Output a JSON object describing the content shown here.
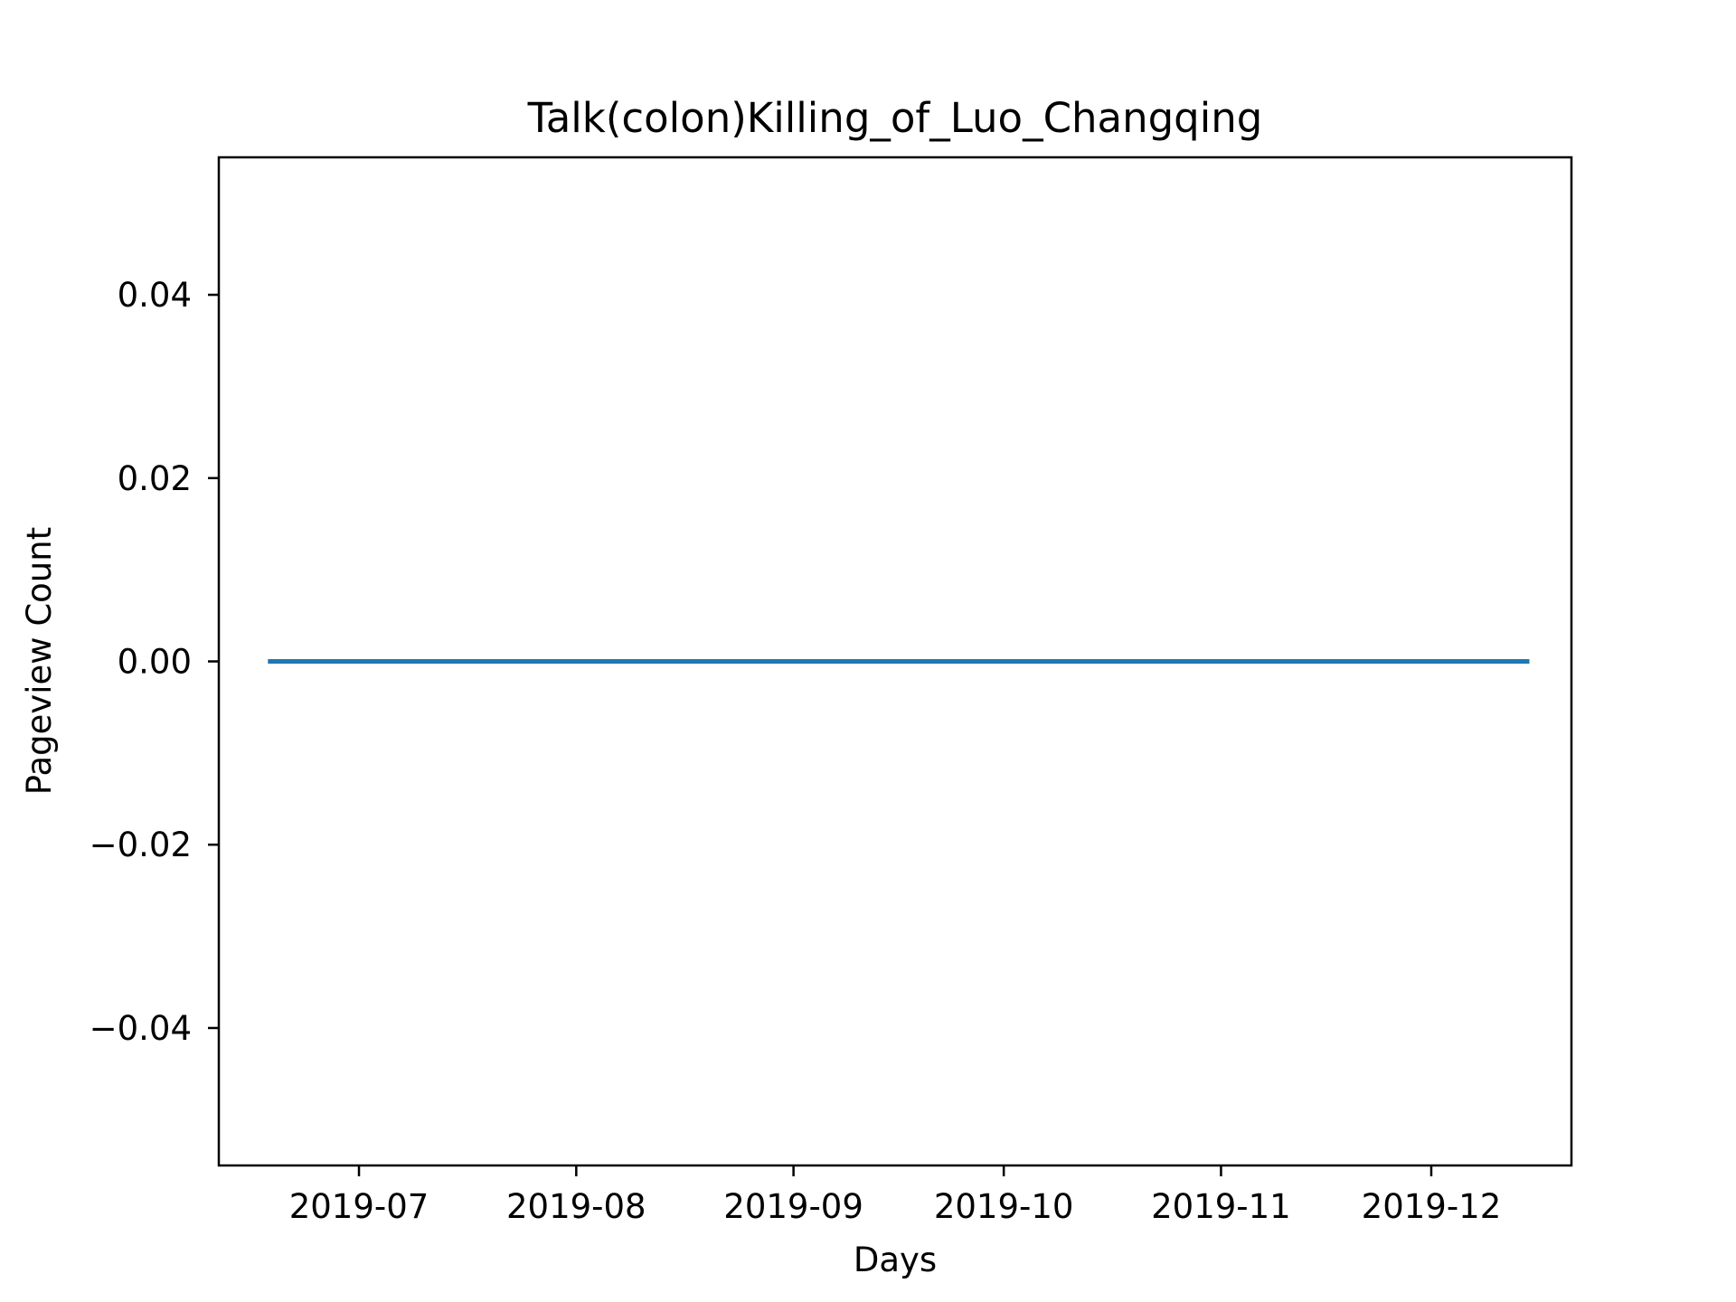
{
  "chart_data": {
    "type": "line",
    "title": "Talk(colon)Killing_of_Luo_Changqing",
    "xlabel": "Days",
    "ylabel": "Pageview Count",
    "x_range": [
      "2019-06-11",
      "2019-12-21"
    ],
    "ylim": [
      -0.055,
      0.055
    ],
    "x_ticks": [
      {
        "date": "2019-07-01",
        "label": "2019-07"
      },
      {
        "date": "2019-08-01",
        "label": "2019-08"
      },
      {
        "date": "2019-09-01",
        "label": "2019-09"
      },
      {
        "date": "2019-10-01",
        "label": "2019-10"
      },
      {
        "date": "2019-11-01",
        "label": "2019-11"
      },
      {
        "date": "2019-12-01",
        "label": "2019-12"
      }
    ],
    "y_ticks": [
      {
        "value": 0.04,
        "label": "0.04"
      },
      {
        "value": 0.02,
        "label": "0.02"
      },
      {
        "value": 0.0,
        "label": "0.00"
      },
      {
        "value": -0.02,
        "label": "−0.02"
      },
      {
        "value": -0.04,
        "label": "−0.04"
      }
    ],
    "series": [
      {
        "color": "#1f77b4",
        "x": [
          "2019-06-18",
          "2019-12-15"
        ],
        "y": [
          0,
          0
        ]
      }
    ],
    "grid": false,
    "legend": "none"
  }
}
